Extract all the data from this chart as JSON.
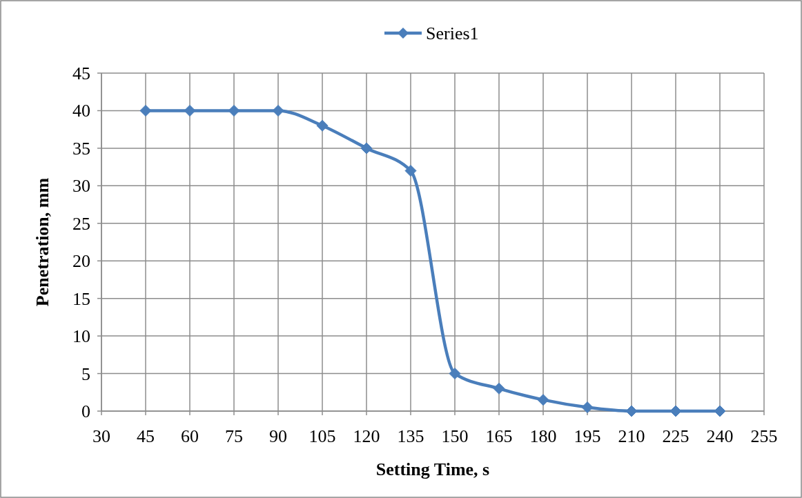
{
  "chart_data": {
    "type": "line",
    "xlabel": "Setting Time, s",
    "ylabel": "Penetration, mm",
    "x": [
      45,
      60,
      75,
      90,
      105,
      120,
      135,
      150,
      165,
      180,
      195,
      210,
      225,
      240
    ],
    "series": [
      {
        "name": "Series1",
        "color": "#4a7ebb",
        "values": [
          40,
          40,
          40,
          40,
          38,
          35,
          32,
          5,
          3,
          1.5,
          0.5,
          0,
          0,
          0
        ]
      }
    ],
    "xlim": [
      30,
      255
    ],
    "xticks": [
      30,
      45,
      60,
      75,
      90,
      105,
      120,
      135,
      150,
      165,
      180,
      195,
      210,
      225,
      240,
      255
    ],
    "ylim": [
      0,
      45
    ],
    "yticks": [
      0,
      5,
      10,
      15,
      20,
      25,
      30,
      35,
      40,
      45
    ],
    "grid": true,
    "legend": "top",
    "marker": "diamond",
    "line_style": "solid"
  }
}
